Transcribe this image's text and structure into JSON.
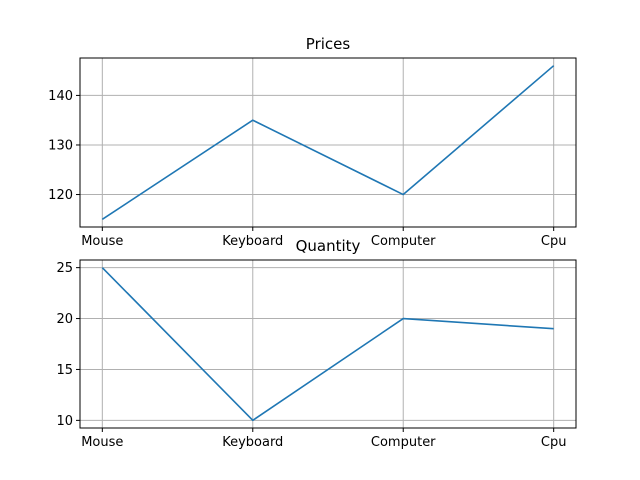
{
  "chart_data": [
    {
      "type": "line",
      "title": "Prices",
      "categories": [
        "Mouse",
        "Keyboard",
        "Computer",
        "Cpu"
      ],
      "values": [
        115,
        135,
        120,
        146
      ],
      "ylim": [
        113.45,
        147.55
      ],
      "yticks": [
        120,
        130,
        140
      ],
      "grid": true,
      "color": "#1f77b4"
    },
    {
      "type": "line",
      "title": "Quantity",
      "categories": [
        "Mouse",
        "Keyboard",
        "Computer",
        "Cpu"
      ],
      "values": [
        25,
        10,
        20,
        19
      ],
      "ylim": [
        9.25,
        25.75
      ],
      "yticks": [
        10,
        15,
        20,
        25
      ],
      "grid": true,
      "color": "#1f77b4"
    }
  ]
}
